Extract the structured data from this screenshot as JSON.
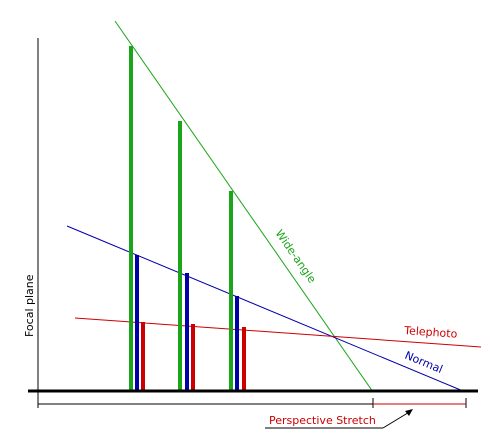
{
  "labels": {
    "focal_plane": "Focal plane",
    "wide_angle": "Wide-angle",
    "telephoto": "Telephoto",
    "normal": "Normal",
    "perspective_stretch": "Perspective Stretch"
  },
  "colors": {
    "wide_angle": "#1aa51a",
    "normal": "#0000aa",
    "telephoto": "#cc0000",
    "axis": "#000000",
    "background": "#ffffff"
  }
}
